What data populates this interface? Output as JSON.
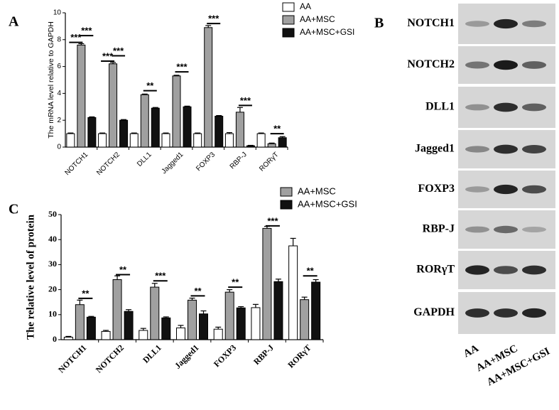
{
  "chart_data": [
    {
      "type": "bar",
      "panel": "A",
      "ylabel": "The mRNA level relative to GAPDH",
      "categories": [
        "NOTCH1",
        "NOTCH2",
        "DLL1",
        "Jagged1",
        "FOXP3",
        "RBP-J",
        "RORγT"
      ],
      "series": [
        {
          "name": "AA",
          "color": "#ffffff",
          "values": [
            1,
            1,
            1,
            1,
            1,
            1,
            1
          ],
          "errors": [
            0.05,
            0.05,
            0.05,
            0.05,
            0.05,
            0.08,
            0.05
          ]
        },
        {
          "name": "AA+MSC",
          "color": "#a0a0a0",
          "values": [
            7.6,
            6.2,
            3.9,
            5.3,
            8.9,
            2.6,
            0.25
          ],
          "errors": [
            0.1,
            0.1,
            0.05,
            0.05,
            0.15,
            0.35,
            0.05
          ]
        },
        {
          "name": "AA+MSC+GSI",
          "color": "#111111",
          "values": [
            2.2,
            2.0,
            2.9,
            3.0,
            2.3,
            0.1,
            0.7
          ],
          "errors": [
            0.05,
            0.05,
            0.05,
            0.05,
            0.05,
            0.03,
            0.08
          ]
        }
      ],
      "ylim": [
        0,
        10
      ],
      "yticks": [
        0,
        2,
        4,
        6,
        8,
        10
      ],
      "annotations": [
        {
          "label": "***",
          "category": 0,
          "series": [
            0,
            1
          ],
          "y": 7.8
        },
        {
          "label": "***",
          "category": 0,
          "series": [
            1,
            2
          ],
          "y": 8.3
        },
        {
          "label": "***",
          "category": 1,
          "series": [
            0,
            1
          ],
          "y": 6.4
        },
        {
          "label": "***",
          "category": 1,
          "series": [
            1,
            2
          ],
          "y": 6.8
        },
        {
          "label": "**",
          "category": 2,
          "series": [
            1,
            2
          ],
          "y": 4.2
        },
        {
          "label": "***",
          "category": 3,
          "series": [
            1,
            2
          ],
          "y": 5.6
        },
        {
          "label": "***",
          "category": 4,
          "series": [
            1,
            2
          ],
          "y": 9.2
        },
        {
          "label": "***",
          "category": 5,
          "series": [
            1,
            2
          ],
          "y": 3.1
        },
        {
          "label": "**",
          "category": 6,
          "series": [
            1,
            2
          ],
          "y": 1.0
        }
      ]
    },
    {
      "type": "bar",
      "panel": "C",
      "ylabel": "The  relative level of protein",
      "categories": [
        "NOTCH1",
        "NOTCH2",
        "DLL1",
        "Jagged1",
        "FOXP3",
        "RBP-J",
        "RORγT"
      ],
      "series": [
        {
          "color": "#ffffff",
          "values": [
            1,
            3.3,
            3.7,
            4.7,
            4.2,
            12.8,
            37.5
          ],
          "errors": [
            0.3,
            0.4,
            0.8,
            1,
            0.8,
            1.3,
            3
          ]
        },
        {
          "name": "AA+MSC",
          "color": "#a0a0a0",
          "values": [
            14,
            24,
            21,
            15.8,
            19,
            44.5,
            16
          ],
          "errors": [
            1.8,
            1.5,
            1.5,
            0.8,
            1,
            0.8,
            1
          ]
        },
        {
          "name": "AA+MSC+GSI",
          "color": "#111111",
          "values": [
            9,
            11.3,
            8.7,
            10.3,
            12.7,
            23.2,
            23
          ],
          "errors": [
            0.3,
            0.7,
            0.4,
            1.2,
            0.5,
            1,
            1
          ]
        }
      ],
      "ylim": [
        0,
        50
      ],
      "yticks": [
        0,
        10,
        20,
        30,
        40,
        50
      ],
      "annotations": [
        {
          "label": "**",
          "category": 0,
          "series": [
            1,
            2
          ],
          "y": 16.5
        },
        {
          "label": "**",
          "category": 1,
          "series": [
            1,
            2
          ],
          "y": 26
        },
        {
          "label": "***",
          "category": 2,
          "series": [
            1,
            2
          ],
          "y": 23.5
        },
        {
          "label": "**",
          "category": 3,
          "series": [
            1,
            2
          ],
          "y": 17.5
        },
        {
          "label": "**",
          "category": 4,
          "series": [
            1,
            2
          ],
          "y": 21
        },
        {
          "label": "***",
          "category": 5,
          "series": [
            1,
            2
          ],
          "y": 45.5
        },
        {
          "label": "**",
          "category": 6,
          "series": [
            1,
            2
          ],
          "y": 25.5
        }
      ]
    }
  ],
  "blot": {
    "panel": "B",
    "rows": [
      "NOTCH1",
      "NOTCH2",
      "DLL1",
      "Jagged1",
      "FOXP3",
      "RBP-J",
      "RORγT",
      "GAPDH"
    ],
    "columns": [
      "AA",
      "AA+MSC",
      "AA+MSC+GSI"
    ]
  }
}
